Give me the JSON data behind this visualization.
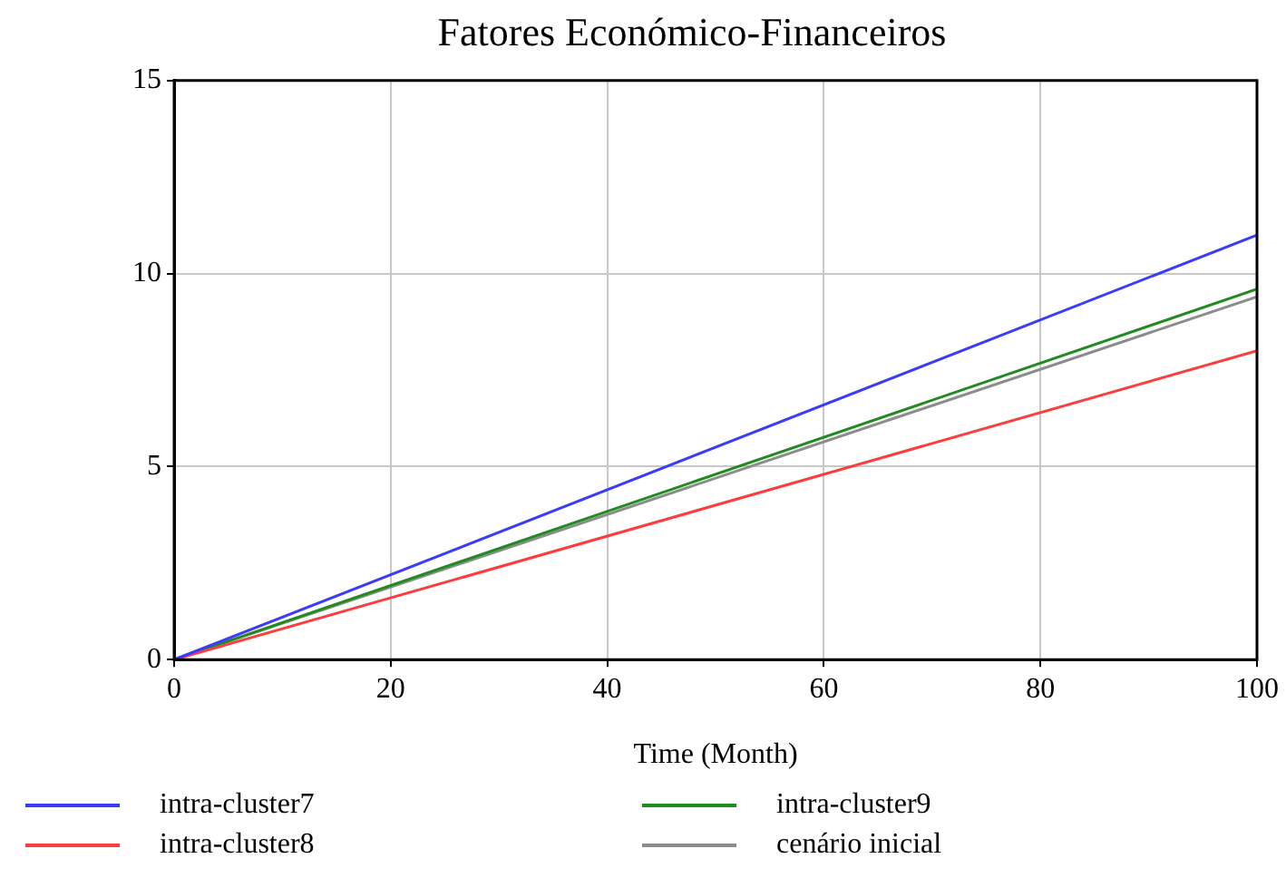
{
  "chart_data": {
    "type": "line",
    "title": "Fatores Económico-Financeiros",
    "xlabel": "Time (Month)",
    "x": [
      0,
      100
    ],
    "xlim": [
      0,
      100
    ],
    "xticks": [
      0,
      20,
      40,
      60,
      80,
      100
    ],
    "ylim": [
      0,
      15
    ],
    "yticks": [
      0,
      5,
      10,
      15
    ],
    "grid": true,
    "legend": "bottom",
    "marker": "none",
    "line_style": "solid",
    "series": [
      {
        "name": "intra-cluster7",
        "color": "#3b3bff",
        "values": [
          0,
          11
        ]
      },
      {
        "name": "intra-cluster8",
        "color": "#ff3b3b",
        "values": [
          0,
          8
        ]
      },
      {
        "name": "intra-cluster9",
        "color": "#1e8c1e",
        "values": [
          0,
          9.6
        ]
      },
      {
        "name": "cenário inicial",
        "color": "#8c8c8c",
        "values": [
          0,
          9.4
        ]
      }
    ]
  }
}
